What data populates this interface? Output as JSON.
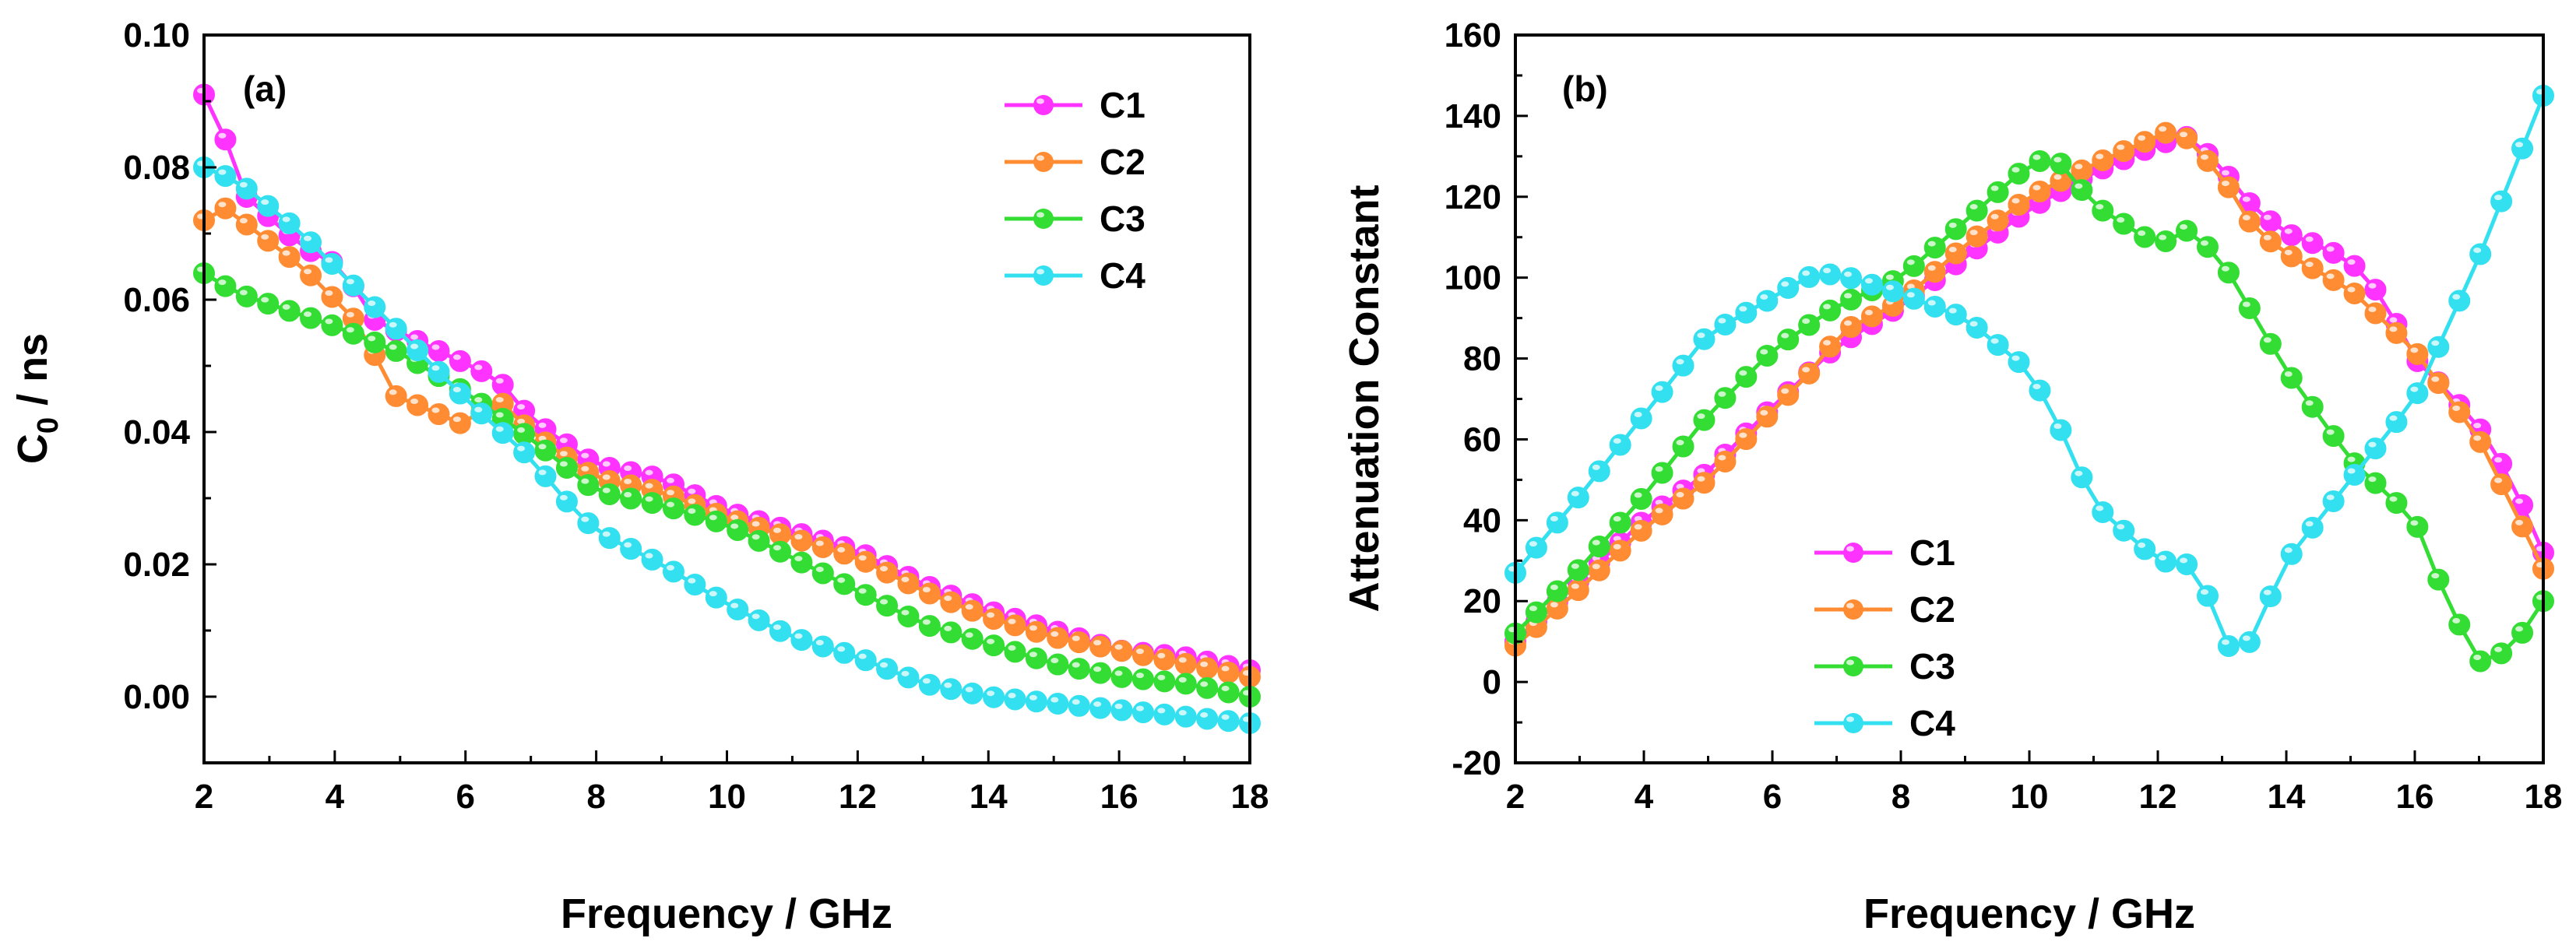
{
  "chart_data": [
    {
      "type": "line",
      "panel_label": "(a)",
      "title": "",
      "xlabel": "Frequency / GHz",
      "ylabel_main": "C",
      "ylabel_sub": "0",
      "ylabel_rest": " / ns",
      "xlim": [
        2,
        18
      ],
      "ylim": [
        -0.01,
        0.1
      ],
      "xticks": [
        2,
        4,
        6,
        8,
        10,
        12,
        14,
        16,
        18
      ],
      "yticks": [
        "0.00",
        "0.02",
        "0.04",
        "0.06",
        "0.08",
        "0.10"
      ],
      "legend_position": "top-right",
      "series": [
        {
          "name": "C1",
          "color": "#ff33ff",
          "anchors": [
            [
              2.0,
              0.091
            ],
            [
              2.3,
              0.085
            ],
            [
              2.6,
              0.076
            ],
            [
              3.5,
              0.068
            ],
            [
              4.1,
              0.065
            ],
            [
              4.6,
              0.057
            ],
            [
              5.0,
              0.055
            ],
            [
              6.5,
              0.048
            ],
            [
              7.0,
              0.042
            ],
            [
              8.0,
              0.035
            ],
            [
              9.0,
              0.033
            ],
            [
              10.0,
              0.028
            ],
            [
              11.0,
              0.025
            ],
            [
              12.0,
              0.022
            ],
            [
              13.0,
              0.017
            ],
            [
              14.0,
              0.013
            ],
            [
              15.0,
              0.01
            ],
            [
              16.0,
              0.007
            ],
            [
              17.0,
              0.006
            ],
            [
              18.0,
              0.004
            ]
          ]
        },
        {
          "name": "C2",
          "color": "#ff8c33",
          "anchors": [
            [
              2.0,
              0.072
            ],
            [
              2.3,
              0.074
            ],
            [
              3.5,
              0.065
            ],
            [
              4.5,
              0.055
            ],
            [
              4.8,
              0.046
            ],
            [
              6.0,
              0.041
            ],
            [
              6.5,
              0.045
            ],
            [
              7.0,
              0.04
            ],
            [
              8.0,
              0.033
            ],
            [
              9.0,
              0.031
            ],
            [
              10.0,
              0.027
            ],
            [
              11.0,
              0.024
            ],
            [
              12.0,
              0.021
            ],
            [
              13.0,
              0.016
            ],
            [
              14.0,
              0.012
            ],
            [
              15.0,
              0.009
            ],
            [
              16.0,
              0.007
            ],
            [
              17.0,
              0.005
            ],
            [
              18.0,
              0.003
            ]
          ]
        },
        {
          "name": "C3",
          "color": "#33dd33",
          "anchors": [
            [
              2.0,
              0.064
            ],
            [
              2.5,
              0.061
            ],
            [
              4.0,
              0.056
            ],
            [
              5.0,
              0.052
            ],
            [
              6.0,
              0.046
            ],
            [
              7.0,
              0.039
            ],
            [
              8.0,
              0.031
            ],
            [
              9.0,
              0.029
            ],
            [
              10.0,
              0.026
            ],
            [
              11.0,
              0.021
            ],
            [
              12.0,
              0.016
            ],
            [
              13.0,
              0.011
            ],
            [
              14.0,
              0.008
            ],
            [
              15.0,
              0.005
            ],
            [
              16.0,
              0.003
            ],
            [
              17.0,
              0.002
            ],
            [
              18.0,
              0.0
            ]
          ]
        },
        {
          "name": "C4",
          "color": "#33e0f0",
          "anchors": [
            [
              2.0,
              0.08
            ],
            [
              2.5,
              0.078
            ],
            [
              3.5,
              0.07
            ],
            [
              4.0,
              0.065
            ],
            [
              5.0,
              0.055
            ],
            [
              6.0,
              0.045
            ],
            [
              7.0,
              0.036
            ],
            [
              7.5,
              0.03
            ],
            [
              8.0,
              0.025
            ],
            [
              9.0,
              0.02
            ],
            [
              10.0,
              0.014
            ],
            [
              11.0,
              0.009
            ],
            [
              12.0,
              0.006
            ],
            [
              13.0,
              0.002
            ],
            [
              14.0,
              0.0
            ],
            [
              15.0,
              -0.001
            ],
            [
              16.0,
              -0.002
            ],
            [
              17.0,
              -0.003
            ],
            [
              18.0,
              -0.004
            ]
          ]
        }
      ]
    },
    {
      "type": "line",
      "panel_label": "(b)",
      "title": "",
      "xlabel": "Frequency / GHz",
      "ylabel": "Attenuation Constant",
      "xlim": [
        2,
        18
      ],
      "ylim": [
        -20,
        160
      ],
      "xticks": [
        2,
        4,
        6,
        8,
        10,
        12,
        14,
        16,
        18
      ],
      "yticks": [
        -20,
        0,
        20,
        40,
        60,
        80,
        100,
        120,
        140,
        160
      ],
      "legend_position": "bottom-center",
      "series": [
        {
          "name": "C1",
          "color": "#ff33ff",
          "anchors": [
            [
              2.0,
              10
            ],
            [
              3.0,
              25
            ],
            [
              4.0,
              40
            ],
            [
              5.0,
              52
            ],
            [
              6.0,
              68
            ],
            [
              7.0,
              83
            ],
            [
              8.0,
              93
            ],
            [
              9.0,
              105
            ],
            [
              10.0,
              117
            ],
            [
              11.0,
              126
            ],
            [
              12.0,
              133
            ],
            [
              12.5,
              135
            ],
            [
              13.0,
              127
            ],
            [
              13.5,
              117
            ],
            [
              14.0,
              111
            ],
            [
              14.5,
              108
            ],
            [
              15.0,
              104
            ],
            [
              15.5,
              95
            ],
            [
              16.0,
              80
            ],
            [
              16.5,
              72
            ],
            [
              17.0,
              63
            ],
            [
              17.5,
              50
            ],
            [
              18.0,
              32
            ]
          ]
        },
        {
          "name": "C2",
          "color": "#ff8c33",
          "anchors": [
            [
              2.0,
              9
            ],
            [
              3.0,
              23
            ],
            [
              4.0,
              38
            ],
            [
              5.0,
              50
            ],
            [
              6.0,
              67
            ],
            [
              6.8,
              80
            ],
            [
              7.0,
              86
            ],
            [
              8.0,
              94
            ],
            [
              9.0,
              108
            ],
            [
              10.0,
              120
            ],
            [
              11.0,
              128
            ],
            [
              12.0,
              135
            ],
            [
              12.3,
              137
            ],
            [
              13.0,
              125
            ],
            [
              13.5,
              112
            ],
            [
              14.0,
              106
            ],
            [
              15.0,
              97
            ],
            [
              16.0,
              82
            ],
            [
              17.0,
              60
            ],
            [
              18.0,
              28
            ]
          ]
        },
        {
          "name": "C3",
          "color": "#33dd33",
          "anchors": [
            [
              2.0,
              12
            ],
            [
              3.0,
              28
            ],
            [
              4.0,
              46
            ],
            [
              5.0,
              66
            ],
            [
              6.0,
              82
            ],
            [
              7.0,
              93
            ],
            [
              8.0,
              100
            ],
            [
              9.0,
              114
            ],
            [
              10.0,
              128
            ],
            [
              10.4,
              130
            ],
            [
              11.0,
              118
            ],
            [
              12.0,
              108
            ],
            [
              12.5,
              112
            ],
            [
              13.0,
              104
            ],
            [
              14.0,
              77
            ],
            [
              15.0,
              55
            ],
            [
              16.0,
              40
            ],
            [
              16.5,
              20
            ],
            [
              17.0,
              5
            ],
            [
              17.5,
              8
            ],
            [
              18.0,
              20
            ]
          ]
        },
        {
          "name": "C4",
          "color": "#33e0f0",
          "anchors": [
            [
              2.0,
              27
            ],
            [
              3.0,
              46
            ],
            [
              4.0,
              66
            ],
            [
              5.0,
              86
            ],
            [
              6.0,
              95
            ],
            [
              6.5,
              100
            ],
            [
              7.0,
              101
            ],
            [
              8.0,
              96
            ],
            [
              9.0,
              90
            ],
            [
              10.0,
              77
            ],
            [
              10.5,
              62
            ],
            [
              11.0,
              44
            ],
            [
              12.0,
              30
            ],
            [
              12.5,
              29
            ],
            [
              13.0,
              15
            ],
            [
              13.2,
              3
            ],
            [
              13.5,
              12
            ],
            [
              14.0,
              30
            ],
            [
              15.0,
              50
            ],
            [
              16.0,
              70
            ],
            [
              17.0,
              105
            ],
            [
              18.0,
              145
            ]
          ]
        }
      ]
    }
  ]
}
